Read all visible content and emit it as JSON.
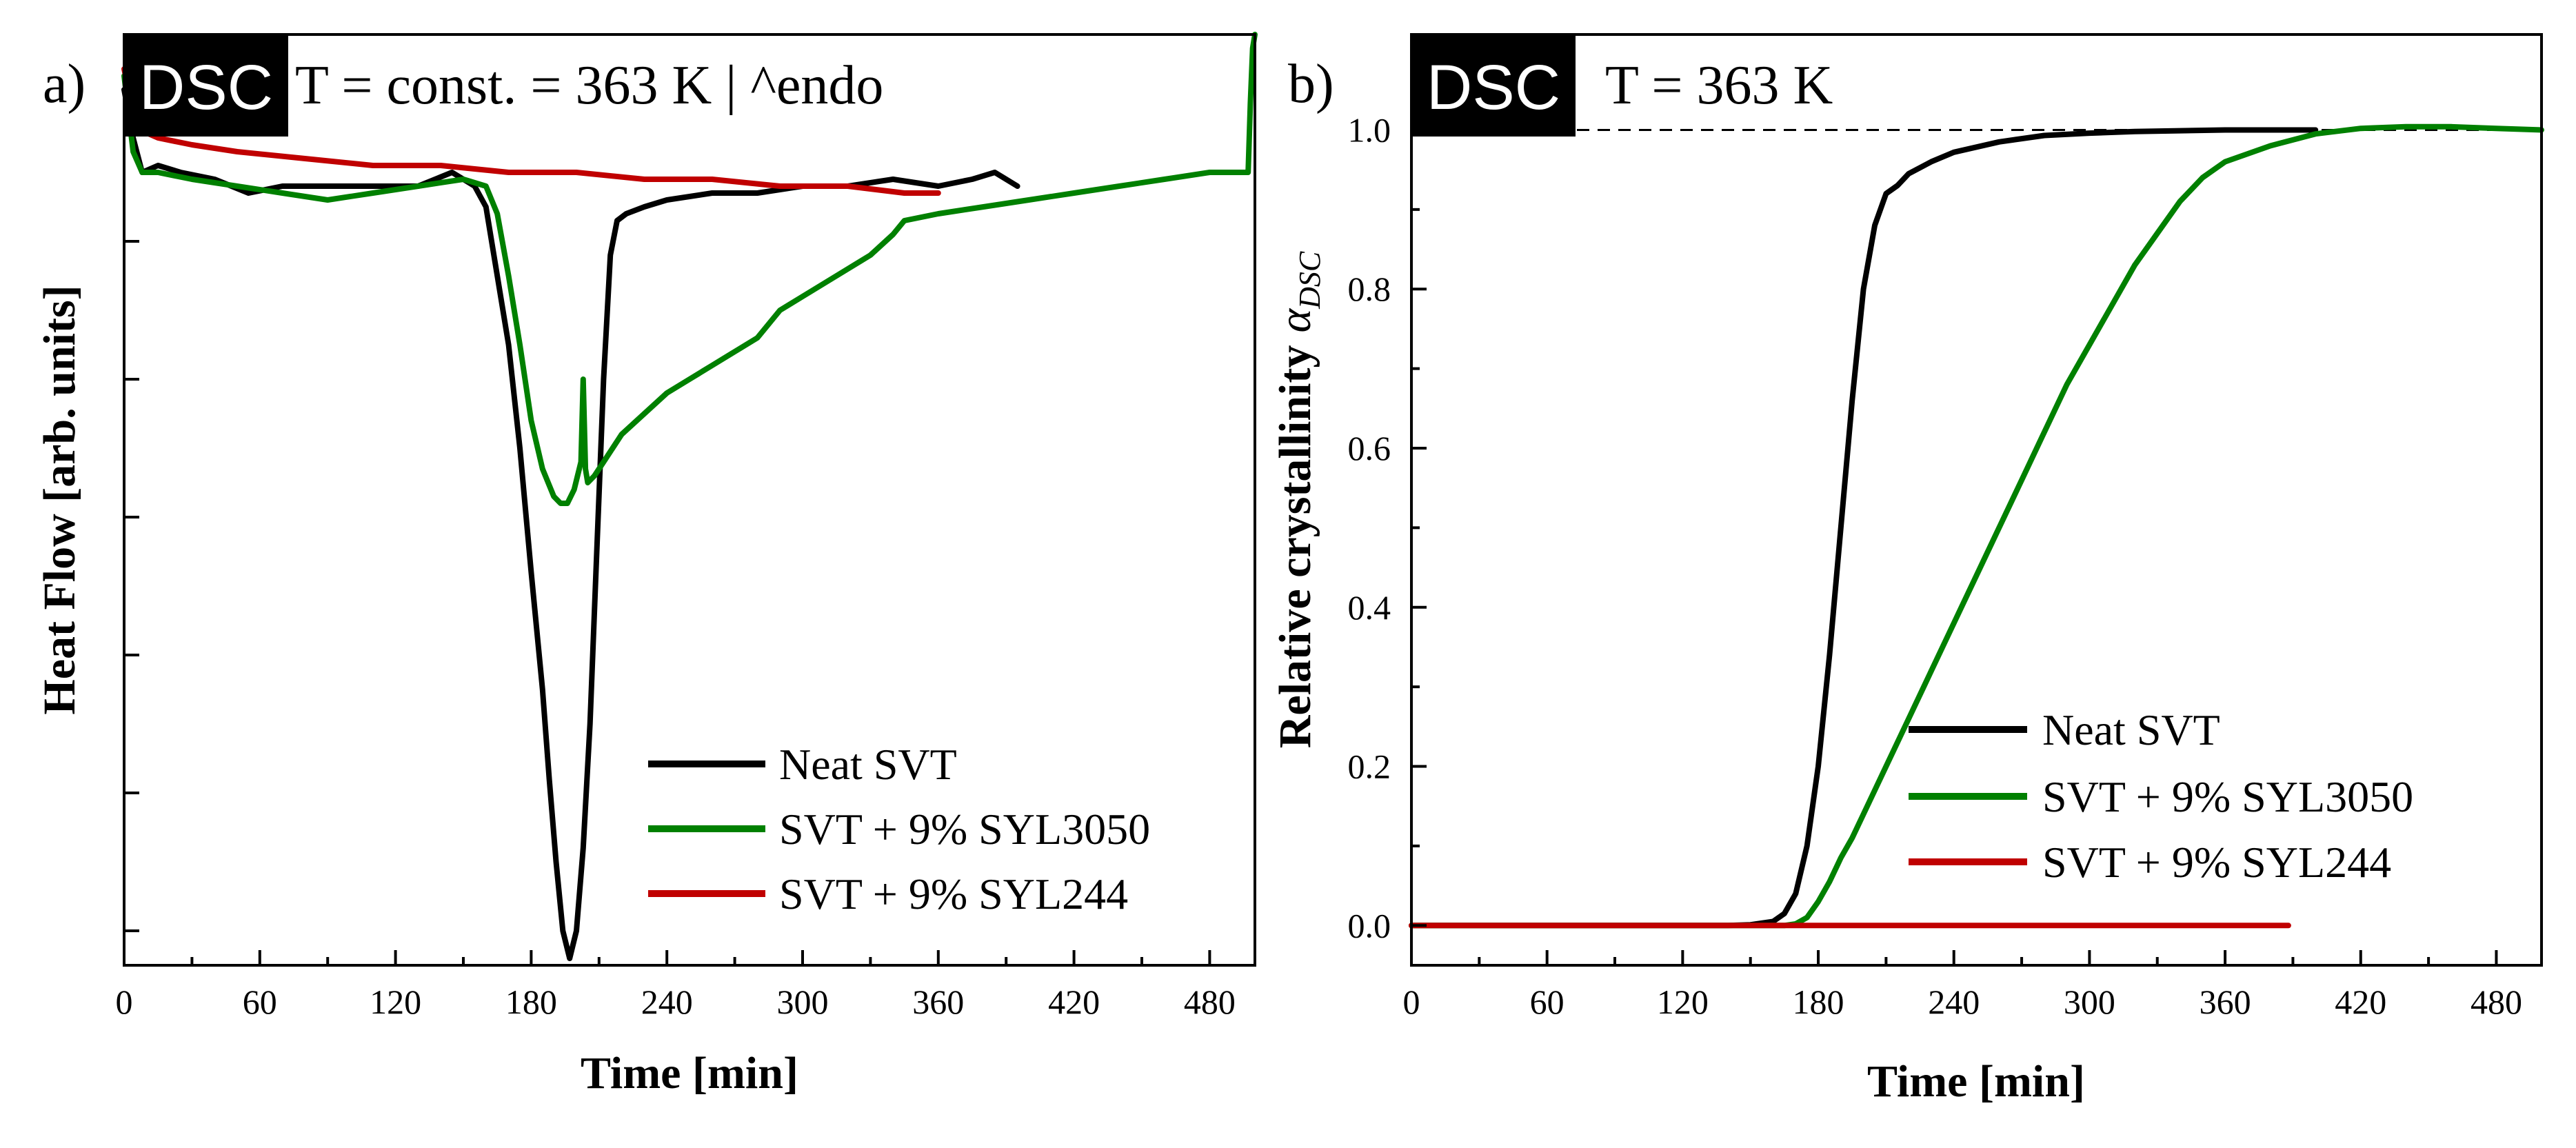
{
  "chart_data": [
    {
      "type": "line",
      "panel_label": "a)",
      "badge": "DSC",
      "annotation": "T = const. = 363 K | ^endo",
      "xlabel": "Time [min]",
      "ylabel": "Heat Flow [arb. units]",
      "xlim": [
        0,
        500
      ],
      "ylim": [
        -1.05,
        0.3
      ],
      "xticks": [
        "0",
        "60",
        "120",
        "180",
        "240",
        "300",
        "360",
        "420",
        "480"
      ],
      "xtick_values": [
        0,
        60,
        120,
        180,
        240,
        300,
        360,
        420,
        480
      ],
      "ytick_values": [
        0,
        -0.2,
        -0.4,
        -0.6,
        -0.8,
        -1.0
      ],
      "legend_position": "bottom-right",
      "series": [
        {
          "name": "Neat SVT",
          "color": "#000000",
          "x": [
            0,
            4,
            8,
            15,
            25,
            40,
            55,
            70,
            90,
            110,
            130,
            145,
            150,
            155,
            160,
            165,
            170,
            175,
            180,
            185,
            188,
            191,
            194,
            197,
            200,
            203,
            206,
            209,
            212,
            215,
            218,
            222,
            230,
            240,
            260,
            280,
            300,
            320,
            340,
            360,
            375,
            385,
            395
          ],
          "y": [
            0.22,
            0.15,
            0.1,
            0.11,
            0.1,
            0.09,
            0.07,
            0.08,
            0.08,
            0.08,
            0.08,
            0.1,
            0.09,
            0.08,
            0.05,
            -0.05,
            -0.15,
            -0.3,
            -0.48,
            -0.65,
            -0.78,
            -0.9,
            -1.0,
            -1.04,
            -1.0,
            -0.88,
            -0.7,
            -0.45,
            -0.2,
            -0.02,
            0.03,
            0.04,
            0.05,
            0.06,
            0.07,
            0.07,
            0.08,
            0.08,
            0.09,
            0.08,
            0.09,
            0.1,
            0.08
          ]
        },
        {
          "name": "SVT + 9% SYL3050",
          "color": "#008000",
          "x": [
            0,
            4,
            8,
            15,
            30,
            50,
            70,
            90,
            110,
            130,
            150,
            160,
            165,
            170,
            175,
            180,
            185,
            190,
            193,
            196,
            199,
            202,
            203,
            204,
            205,
            208,
            212,
            216,
            220,
            230,
            240,
            250,
            260,
            270,
            280,
            290,
            300,
            310,
            320,
            330,
            340,
            345,
            360,
            380,
            400,
            420,
            440,
            460,
            480,
            490,
            497,
            498,
            499,
            500
          ],
          "y": [
            0.24,
            0.13,
            0.1,
            0.1,
            0.09,
            0.08,
            0.07,
            0.06,
            0.07,
            0.08,
            0.09,
            0.08,
            0.04,
            -0.05,
            -0.15,
            -0.26,
            -0.33,
            -0.37,
            -0.38,
            -0.38,
            -0.36,
            -0.32,
            -0.2,
            -0.33,
            -0.35,
            -0.34,
            -0.32,
            -0.3,
            -0.28,
            -0.25,
            -0.22,
            -0.2,
            -0.18,
            -0.16,
            -0.14,
            -0.1,
            -0.08,
            -0.06,
            -0.04,
            -0.02,
            0.01,
            0.03,
            0.04,
            0.05,
            0.06,
            0.07,
            0.08,
            0.09,
            0.1,
            0.1,
            0.1,
            0.2,
            0.28,
            0.3
          ]
        },
        {
          "name": "SVT + 9% SYL244",
          "color": "#c00000",
          "x": [
            0,
            4,
            8,
            15,
            30,
            50,
            80,
            110,
            140,
            170,
            200,
            230,
            260,
            290,
            320,
            345,
            360
          ],
          "y": [
            0.25,
            0.19,
            0.16,
            0.15,
            0.14,
            0.13,
            0.12,
            0.11,
            0.11,
            0.1,
            0.1,
            0.09,
            0.09,
            0.08,
            0.08,
            0.07,
            0.07
          ]
        }
      ]
    },
    {
      "type": "line",
      "panel_label": "b)",
      "badge": "DSC",
      "annotation": "T = 363 K",
      "xlabel": "Time [min]",
      "ylabel": "Relative crystallinity",
      "ylabel_symbol": "α",
      "ylabel_subscript": "DSC",
      "xlim": [
        0,
        500
      ],
      "ylim": [
        -0.05,
        1.12
      ],
      "xticks": [
        "0",
        "60",
        "120",
        "180",
        "240",
        "300",
        "360",
        "420",
        "480"
      ],
      "xtick_values": [
        0,
        60,
        120,
        180,
        240,
        300,
        360,
        420,
        480
      ],
      "yticks": [
        "0.0",
        "0.2",
        "0.4",
        "0.6",
        "0.8",
        "1.0"
      ],
      "ytick_values": [
        0,
        0.2,
        0.4,
        0.6,
        0.8,
        1.0
      ],
      "reference_line": 1.0,
      "legend_position": "bottom-right",
      "series": [
        {
          "name": "Neat SVT",
          "color": "#000000",
          "x": [
            0,
            100,
            140,
            150,
            160,
            165,
            170,
            175,
            180,
            185,
            190,
            195,
            200,
            205,
            210,
            215,
            220,
            230,
            240,
            260,
            280,
            300,
            320,
            340,
            360,
            380,
            400
          ],
          "y": [
            0,
            0,
            0,
            0.001,
            0.005,
            0.015,
            0.04,
            0.1,
            0.2,
            0.34,
            0.5,
            0.66,
            0.8,
            0.88,
            0.92,
            0.93,
            0.945,
            0.96,
            0.972,
            0.985,
            0.993,
            0.996,
            0.998,
            0.999,
            1.0,
            1.0,
            1.0
          ]
        },
        {
          "name": "SVT + 9% SYL3050",
          "color": "#008000",
          "x": [
            0,
            100,
            165,
            170,
            175,
            180,
            185,
            190,
            195,
            200,
            210,
            220,
            230,
            240,
            250,
            260,
            270,
            280,
            290,
            300,
            310,
            320,
            330,
            340,
            350,
            360,
            380,
            400,
            420,
            440,
            460,
            480,
            500
          ],
          "y": [
            0,
            0,
            0,
            0.002,
            0.01,
            0.03,
            0.055,
            0.085,
            0.11,
            0.14,
            0.2,
            0.26,
            0.32,
            0.38,
            0.44,
            0.5,
            0.56,
            0.62,
            0.68,
            0.73,
            0.78,
            0.83,
            0.87,
            0.91,
            0.94,
            0.96,
            0.98,
            0.995,
            1.002,
            1.004,
            1.004,
            1.002,
            1.0
          ]
        },
        {
          "name": "SVT + 9% SYL244",
          "color": "#c00000",
          "x": [
            0,
            100,
            200,
            300,
            388
          ],
          "y": [
            0,
            0,
            0,
            0,
            0
          ]
        }
      ]
    }
  ]
}
